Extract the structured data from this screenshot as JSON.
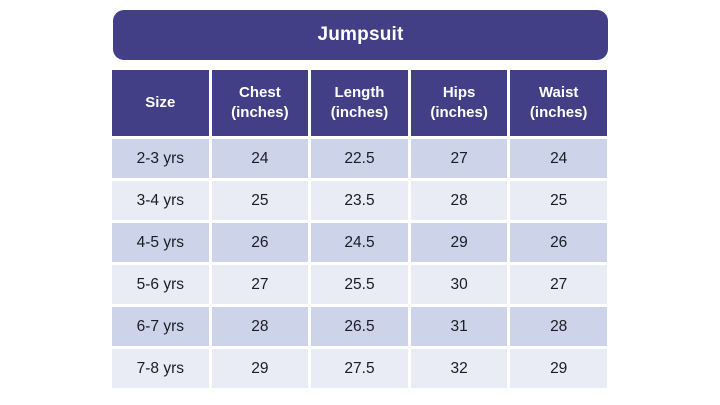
{
  "banner": {
    "title": "Jumpsuit"
  },
  "table": {
    "headers": [
      "Size",
      "Chest\n(inches)",
      "Length\n(inches)",
      "Hips\n(inches)",
      "Waist\n(inches)"
    ]
  },
  "chart_data": {
    "type": "table",
    "title": "Jumpsuit",
    "columns": [
      "Size",
      "Chest (inches)",
      "Length (inches)",
      "Hips (inches)",
      "Waist (inches)"
    ],
    "rows": [
      [
        "2-3 yrs",
        "24",
        "22.5",
        "27",
        "24"
      ],
      [
        "3-4 yrs",
        "25",
        "23.5",
        "28",
        "25"
      ],
      [
        "4-5 yrs",
        "26",
        "24.5",
        "29",
        "26"
      ],
      [
        "5-6 yrs",
        "27",
        "25.5",
        "30",
        "27"
      ],
      [
        "6-7 yrs",
        "28",
        "26.5",
        "31",
        "28"
      ],
      [
        "7-8 yrs",
        "29",
        "27.5",
        "32",
        "29"
      ]
    ]
  },
  "colors": {
    "header_bg": "#433F87",
    "row_odd": "#CDD3E8",
    "row_even": "#E9EBF5",
    "header_text": "#FFFFFF",
    "body_text": "#1B1B22",
    "page_bg": "#FFFFFF"
  }
}
